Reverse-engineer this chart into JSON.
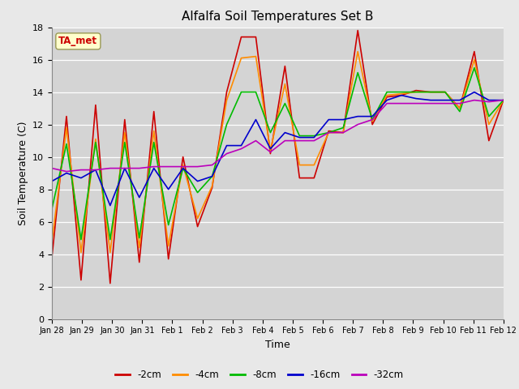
{
  "title": "Alfalfa Soil Temperatures Set B",
  "xlabel": "Time",
  "ylabel": "Soil Temperature (C)",
  "ylim": [
    0,
    18
  ],
  "yticks": [
    0,
    2,
    4,
    6,
    8,
    10,
    12,
    14,
    16,
    18
  ],
  "fig_bg_color": "#e8e8e8",
  "plot_bg_color": "#d4d4d4",
  "grid_color": "#ffffff",
  "line_colors": [
    "#cc0000",
    "#ff8c00",
    "#00bb00",
    "#0000cc",
    "#bb00bb"
  ],
  "line_labels": [
    "-2cm",
    "-4cm",
    "-8cm",
    "-16cm",
    "-32cm"
  ],
  "ta_met_box_facecolor": "#ffffcc",
  "ta_met_box_edgecolor": "#999955",
  "ta_met_text_color": "#cc0000",
  "xtick_labels": [
    "Jan 28",
    "Jan 29",
    "Jan 30",
    "Jan 31",
    "Feb 1",
    "Feb 2",
    "Feb 3",
    "Feb 4",
    "Feb 5",
    "Feb 6",
    "Feb 7",
    "Feb 8",
    "Feb 9",
    "Feb 10",
    "Feb 11",
    "Feb 12"
  ],
  "series": {
    "-2cm": [
      3.8,
      12.5,
      2.4,
      13.2,
      2.2,
      12.3,
      3.5,
      12.8,
      3.7,
      10.0,
      5.7,
      8.1,
      14.0,
      17.4,
      17.4,
      10.2,
      15.6,
      8.7,
      8.7,
      11.6,
      11.5,
      17.8,
      12.0,
      13.7,
      13.8,
      14.1,
      14.0,
      14.0,
      13.0,
      16.5,
      11.0,
      13.5
    ],
    "-4cm": [
      4.8,
      11.8,
      4.1,
      11.1,
      4.1,
      11.5,
      4.4,
      11.6,
      4.5,
      9.5,
      6.2,
      8.2,
      13.5,
      16.1,
      16.2,
      10.4,
      14.5,
      9.5,
      9.5,
      11.5,
      11.5,
      16.5,
      12.2,
      13.8,
      13.9,
      14.0,
      14.0,
      14.0,
      13.0,
      16.0,
      12.0,
      13.5
    ],
    "-8cm": [
      6.8,
      10.8,
      4.9,
      10.9,
      4.9,
      10.9,
      5.0,
      10.9,
      5.8,
      9.3,
      7.8,
      8.8,
      12.0,
      14.0,
      14.0,
      11.5,
      13.3,
      11.3,
      11.3,
      11.5,
      11.8,
      15.2,
      12.3,
      14.0,
      14.0,
      14.0,
      14.0,
      14.0,
      12.8,
      15.5,
      12.5,
      13.5
    ],
    "-16cm": [
      8.5,
      9.0,
      8.7,
      9.2,
      7.0,
      9.3,
      7.5,
      9.3,
      8.0,
      9.3,
      8.5,
      8.8,
      10.7,
      10.7,
      12.3,
      10.5,
      11.5,
      11.2,
      11.2,
      12.3,
      12.3,
      12.5,
      12.5,
      13.5,
      13.8,
      13.6,
      13.5,
      13.5,
      13.5,
      14.0,
      13.5,
      13.5
    ],
    "-32cm": [
      9.3,
      9.1,
      9.2,
      9.2,
      9.3,
      9.3,
      9.3,
      9.4,
      9.4,
      9.4,
      9.4,
      9.5,
      10.2,
      10.5,
      11.0,
      10.3,
      11.0,
      11.0,
      11.0,
      11.5,
      11.5,
      12.0,
      12.3,
      13.3,
      13.3,
      13.3,
      13.3,
      13.3,
      13.3,
      13.5,
      13.4,
      13.5
    ]
  }
}
